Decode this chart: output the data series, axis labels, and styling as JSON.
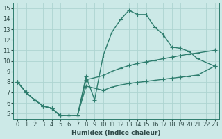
{
  "xlabel": "Humidex (Indice chaleur)",
  "xlim": [
    -0.5,
    23.5
  ],
  "ylim": [
    4.5,
    15.5
  ],
  "xticks": [
    0,
    1,
    2,
    3,
    4,
    5,
    6,
    7,
    8,
    9,
    10,
    11,
    12,
    13,
    14,
    15,
    16,
    17,
    18,
    19,
    20,
    21,
    22,
    23
  ],
  "yticks": [
    5,
    6,
    7,
    8,
    9,
    10,
    11,
    12,
    13,
    14,
    15
  ],
  "bg_color": "#cce9e7",
  "grid_color": "#aed4d1",
  "line_color": "#2e7d6e",
  "line1_x": [
    0,
    1,
    2,
    3,
    4,
    5,
    6,
    7,
    8,
    9,
    10,
    11,
    12,
    13,
    14,
    15,
    16,
    17,
    18,
    19,
    20,
    21,
    23
  ],
  "line1_y": [
    8.0,
    7.0,
    6.3,
    5.7,
    5.5,
    4.8,
    4.85,
    4.8,
    8.5,
    6.3,
    10.5,
    12.7,
    13.9,
    14.8,
    14.4,
    14.4,
    13.2,
    12.5,
    11.3,
    11.2,
    10.9,
    10.2,
    9.5
  ],
  "line2_x": [
    0,
    1,
    2,
    3,
    4,
    5,
    6,
    7,
    8,
    10,
    11,
    12,
    13,
    14,
    15,
    16,
    17,
    18,
    19,
    20,
    21,
    23
  ],
  "line2_y": [
    8.0,
    7.0,
    6.3,
    5.7,
    5.5,
    4.8,
    4.85,
    4.8,
    8.2,
    8.6,
    9.0,
    9.3,
    9.55,
    9.75,
    9.9,
    10.05,
    10.2,
    10.35,
    10.5,
    10.65,
    10.75,
    11.0
  ],
  "line3_x": [
    0,
    1,
    2,
    3,
    4,
    5,
    6,
    7,
    8,
    10,
    11,
    12,
    13,
    14,
    15,
    16,
    17,
    18,
    19,
    20,
    21,
    23
  ],
  "line3_y": [
    8.0,
    7.0,
    6.3,
    5.7,
    5.5,
    4.8,
    4.85,
    4.8,
    7.6,
    7.2,
    7.5,
    7.7,
    7.85,
    7.95,
    8.05,
    8.15,
    8.25,
    8.35,
    8.45,
    8.55,
    8.65,
    9.5
  ],
  "marker_size": 2.5,
  "line_width": 1.0,
  "tick_fontsize": 6.0
}
